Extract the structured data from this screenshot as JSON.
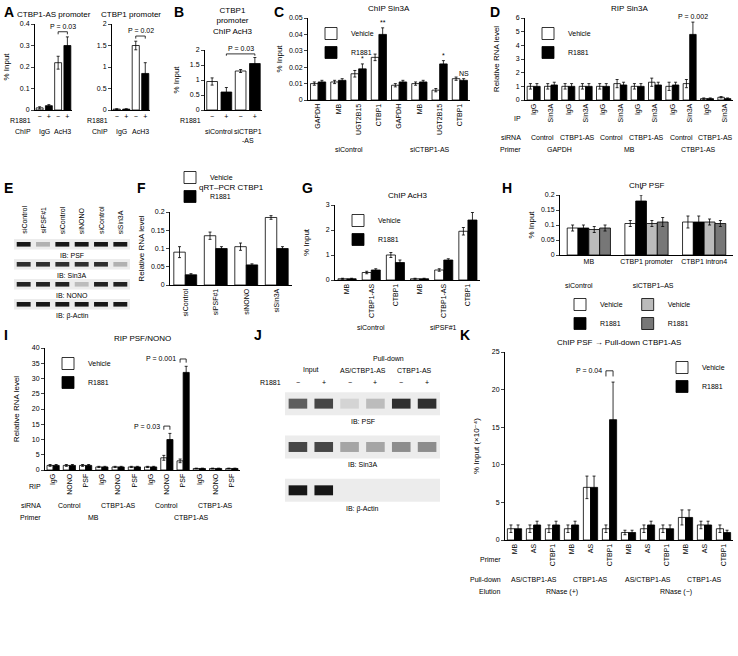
{
  "chart_data": [
    {
      "panel": "A",
      "type": "bar",
      "title": "CTBP1-AS promoter",
      "y_label": "% Input",
      "categories": [
        "−",
        "+",
        "−",
        "+"
      ],
      "category_label": "R1881",
      "rows": [
        {
          "name": "ChIP",
          "labels": [
            "IgG",
            "IgG",
            "AcH3",
            "AcH3"
          ]
        }
      ],
      "values": [
        0.01,
        0.02,
        0.22,
        0.3
      ],
      "errors": [
        0.005,
        0.005,
        0.03,
        0.04
      ],
      "colors": [
        "#ffffff",
        "#000000",
        "#ffffff",
        "#000000"
      ],
      "ylim": [
        0,
        0.4
      ],
      "yticks": [
        0,
        0.1,
        0.2,
        0.3,
        0.4
      ],
      "annotations": [
        {
          "text": "P = 0.03",
          "groups": [
            2,
            3
          ]
        }
      ]
    },
    {
      "type": "bar",
      "title": "CTBP1 promoter",
      "categories": [
        "−",
        "+",
        "−",
        "+"
      ],
      "category_label": "R1881",
      "rows": [
        {
          "name": "ChIP",
          "labels": [
            "IgG",
            "IgG",
            "AcH3",
            "AcH3"
          ]
        }
      ],
      "values": [
        0.02,
        0.02,
        1.5,
        0.85
      ],
      "errors": [
        0.01,
        0.01,
        0.1,
        0.25
      ],
      "colors": [
        "#ffffff",
        "#000000",
        "#ffffff",
        "#000000"
      ],
      "ylim": [
        0,
        2
      ],
      "yticks": [
        0,
        0.5,
        1,
        1.5,
        2
      ],
      "annotations": [
        {
          "text": "P = 0.02",
          "groups": [
            2,
            3
          ]
        }
      ]
    },
    {
      "panel": "B",
      "type": "bar",
      "title": [
        "CTBP1",
        "promoter",
        "ChIP AcH3"
      ],
      "y_label": "% Input",
      "categories": [
        "−",
        "+",
        "−",
        "+"
      ],
      "category_label": "R1881",
      "rows": [
        {
          "labels": [
            "siControl",
            "siControl",
            "siCTBP1-AS",
            "siCTBP1-AS"
          ]
        }
      ],
      "values": [
        0.95,
        0.6,
        1.3,
        1.55
      ],
      "errors": [
        0.12,
        0.15,
        0.05,
        0.2
      ],
      "colors": [
        "#ffffff",
        "#000000",
        "#ffffff",
        "#000000"
      ],
      "ylim": [
        0,
        2
      ],
      "yticks": [
        0,
        0.5,
        1,
        1.5,
        2
      ],
      "annotations": [
        {
          "text": "P = 0.03",
          "groups": [
            1,
            3
          ]
        }
      ]
    },
    {
      "panel": "C",
      "type": "bar",
      "title": "ChIP Sin3A",
      "y_label": "% Input",
      "categories": [
        "GAPDH",
        "MB",
        "UGT2B15",
        "CTBP1",
        "GAPDH",
        "MB",
        "UGT2B15",
        "CTBP1"
      ],
      "rows": [
        {
          "labels": [
            "siControl",
            "siControl",
            "siControl",
            "siControl",
            "siCTBP1-AS",
            "siCTBP1-AS",
            "siCTBP1-AS",
            "siCTBP1-AS"
          ]
        }
      ],
      "series": [
        {
          "name": "Vehicle",
          "color": "#ffffff",
          "values": [
            0.01,
            0.011,
            0.016,
            0.026,
            0.009,
            0.01,
            0.006,
            0.013
          ],
          "errors": [
            0.001,
            0.001,
            0.002,
            0.002,
            0.001,
            0.001,
            0.001,
            0.001
          ]
        },
        {
          "name": "R1881",
          "color": "#000000",
          "values": [
            0.011,
            0.012,
            0.019,
            0.04,
            0.011,
            0.011,
            0.022,
            0.012
          ],
          "errors": [
            0.001,
            0.001,
            0.003,
            0.004,
            0.001,
            0.001,
            0.002,
            0.001
          ]
        }
      ],
      "ylim": [
        0,
        0.05
      ],
      "yticks": [
        0,
        0.01,
        0.02,
        0.03,
        0.04,
        0.05
      ],
      "legend": "upper left",
      "annotations": [
        {
          "text": "*",
          "group": 2,
          "series": 1
        },
        {
          "text": "**",
          "group": 3,
          "series": 1
        },
        {
          "text": "*",
          "group": 6,
          "series": 1
        },
        {
          "text": "NS",
          "group": 7,
          "series": 1
        }
      ]
    },
    {
      "panel": "D",
      "type": "bar",
      "title": "RIP Sin3A",
      "y_label": "Relative RNA level",
      "categories": [
        "IgG",
        "Sin3A",
        "IgG",
        "Sin3A",
        "IgG",
        "Sin3A",
        "IgG",
        "Sin3A",
        "IgG",
        "Sin3A",
        "IgG",
        "Sin3A"
      ],
      "category_label": "IP",
      "rows": [
        {
          "name": "siRNA",
          "labels": [
            "Control",
            "Control",
            "CTBP1-AS",
            "CTBP1-AS",
            "Control",
            "Control",
            "CTBP1-AS",
            "CTBP1-AS",
            "Control",
            "Control",
            "CTBP1-AS",
            "CTBP1-AS"
          ]
        },
        {
          "name": "Primer",
          "labels": [
            "GAPDH",
            "GAPDH",
            "GAPDH",
            "GAPDH",
            "MB",
            "MB",
            "MB",
            "MB",
            "CTBP1-AS",
            "CTBP1-AS",
            "CTBP1-AS",
            "CTBP1-AS"
          ]
        }
      ],
      "series": [
        {
          "name": "Vehicle",
          "color": "#ffffff",
          "values": [
            1,
            1,
            1,
            1,
            1,
            1.2,
            1,
            1.3,
            1,
            1.2,
            0.1,
            0.2
          ],
          "errors": [
            0.2,
            0.2,
            0.2,
            0.2,
            0.2,
            0.3,
            0.2,
            0.3,
            0.3,
            0.3,
            0.05,
            0.05
          ]
        },
        {
          "name": "R1881",
          "color": "#000000",
          "values": [
            1,
            1.1,
            1,
            1,
            1,
            1.1,
            1,
            1.1,
            1.1,
            4.8,
            0.1,
            0.1
          ],
          "errors": [
            0.2,
            0.2,
            0.2,
            0.2,
            0.2,
            0.2,
            0.2,
            0.2,
            0.2,
            0.9,
            0.05,
            0.05
          ]
        }
      ],
      "ylim": [
        0,
        6
      ],
      "yticks": [
        0,
        1,
        2,
        3,
        4,
        5,
        6
      ],
      "legend": "upper left",
      "annotations": [
        {
          "text": "P = 0.002",
          "group": 9,
          "series": 1
        }
      ]
    },
    {
      "panel": "E",
      "type": "blot",
      "label_rows": [
        {
          "labels": [
            "siControl",
            "siPSF#1",
            "siControl",
            "siNONO",
            "siControl",
            "siSin3A"
          ]
        }
      ],
      "rows": [
        {
          "label": "IB: PSF",
          "bands": [
            0.9,
            0.25,
            0.9,
            0.9,
            0.9,
            0.9
          ]
        },
        {
          "label": "IB: Sin3A",
          "bands": [
            0.8,
            0.8,
            0.8,
            0.8,
            0.8,
            0.25
          ]
        },
        {
          "label": "IB: NONO",
          "bands": [
            0.85,
            0.85,
            0.85,
            0.2,
            0.85,
            0.85
          ]
        },
        {
          "label": "IB: β-Actin",
          "bands": [
            0.9,
            0.9,
            0.9,
            0.9,
            0.9,
            0.9
          ]
        }
      ]
    },
    {
      "panel": "F",
      "type": "bar",
      "title": "qRT–PCR CTBP1",
      "y_label": "Relative RNA level",
      "categories": [
        "siControl",
        "siPSF#1",
        "siNONO",
        "siSin3A"
      ],
      "series": [
        {
          "name": "Vehicle",
          "color": "#ffffff",
          "values": [
            0.09,
            0.135,
            0.105,
            0.185
          ],
          "errors": [
            0.015,
            0.01,
            0.01,
            0.005
          ]
        },
        {
          "name": "R1881",
          "color": "#000000",
          "values": [
            0.028,
            0.1,
            0.055,
            0.1
          ],
          "errors": [
            0.003,
            0.005,
            0.003,
            0.005
          ]
        }
      ],
      "ylim": [
        0,
        0.2
      ],
      "yticks": [
        0,
        0.05,
        0.1,
        0.15,
        0.2
      ],
      "legend": "top"
    },
    {
      "panel": "G",
      "type": "bar",
      "title": "ChIP AcH3",
      "y_label": "% Input",
      "categories": [
        "MB",
        "CTBP1-AS",
        "CTBP1",
        "MB",
        "CTBP1-AS",
        "CTBP1"
      ],
      "rows": [
        {
          "labels": [
            "siControl",
            "siControl",
            "siControl",
            "siPSF#1",
            "siPSF#1",
            "siPSF#1"
          ]
        }
      ],
      "series": [
        {
          "name": "Vehicle",
          "color": "#ffffff",
          "values": [
            0.05,
            0.3,
            1.0,
            0.05,
            0.4,
            1.95
          ],
          "errors": [
            0.02,
            0.05,
            0.1,
            0.02,
            0.05,
            0.15
          ]
        },
        {
          "name": "R1881",
          "color": "#000000",
          "values": [
            0.05,
            0.4,
            0.7,
            0.05,
            0.8,
            2.4
          ],
          "errors": [
            0.02,
            0.05,
            0.1,
            0.02,
            0.05,
            0.3
          ]
        }
      ],
      "ylim": [
        0,
        3
      ],
      "yticks": [
        0,
        1,
        2,
        3
      ],
      "legend": "upper left"
    },
    {
      "panel": "H",
      "type": "bar",
      "title": "ChIP PSF",
      "y_label": "% Input",
      "categories": [
        "MB",
        "CTBP1 promoter",
        "CTBP1 intron4"
      ],
      "series": [
        {
          "name": "Vehicle",
          "group": "siControl",
          "color": "#ffffff",
          "values": [
            0.09,
            0.105,
            0.11
          ],
          "errors": [
            0.01,
            0.01,
            0.02
          ]
        },
        {
          "name": "R1881",
          "group": "siControl",
          "color": "#000000",
          "values": [
            0.09,
            0.18,
            0.11
          ],
          "errors": [
            0.01,
            0.02,
            0.02
          ]
        },
        {
          "name": "Vehicle",
          "group": "siCTBP1–AS",
          "color": "#bbbbbb",
          "values": [
            0.085,
            0.105,
            0.11
          ],
          "errors": [
            0.01,
            0.01,
            0.01
          ]
        },
        {
          "name": "R1881",
          "group": "siCTBP1–AS",
          "color": "#777777",
          "values": [
            0.09,
            0.11,
            0.105
          ],
          "errors": [
            0.01,
            0.015,
            0.01
          ]
        }
      ],
      "ylim": [
        0,
        0.2
      ],
      "yticks": [
        0,
        0.05,
        0.1,
        0.15,
        0.2
      ],
      "legend": "bottom",
      "annotations": [
        {
          "text": "*",
          "group": 1,
          "series": 1
        }
      ]
    },
    {
      "panel": "I",
      "type": "bar",
      "title": "RIP PSF/NONO",
      "y_label": "Relative RNA level",
      "categories": [
        "IgG",
        "NONO",
        "PSF",
        "IgG",
        "NONO",
        "PSF",
        "IgG",
        "NONO",
        "PSF",
        "IgG",
        "NONO",
        "PSF"
      ],
      "category_label": "RIP",
      "rows": [
        {
          "name": "siRNA",
          "labels": [
            "Control",
            "Control",
            "Control",
            "CTBP1-AS",
            "CTBP1-AS",
            "CTBP1-AS",
            "Control",
            "Control",
            "Control",
            "CTBP1-AS",
            "CTBP1-AS",
            "CTBP1-AS"
          ]
        },
        {
          "name": "Primer",
          "labels": [
            "MB",
            "MB",
            "MB",
            "MB",
            "MB",
            "MB",
            "CTBP1-AS",
            "CTBP1-AS",
            "CTBP1-AS",
            "CTBP1-AS",
            "CTBP1-AS",
            "CTBP1-AS"
          ]
        }
      ],
      "series": [
        {
          "name": "Vehicle",
          "color": "#ffffff",
          "values": [
            1.5,
            1.5,
            1.5,
            1,
            1,
            1,
            1,
            4,
            3,
            0.5,
            0.5,
            0.5
          ],
          "errors": [
            0.3,
            0.3,
            0.3,
            0.2,
            0.2,
            0.2,
            0.2,
            0.8,
            0.6,
            0.1,
            0.1,
            0.1
          ]
        },
        {
          "name": "R1881",
          "color": "#000000",
          "values": [
            1.5,
            1.5,
            1.5,
            1,
            1,
            1,
            1,
            10,
            32,
            0.5,
            0.5,
            0.5
          ],
          "errors": [
            0.3,
            0.3,
            0.3,
            0.2,
            0.2,
            0.2,
            0.2,
            2,
            2,
            0.1,
            0.1,
            0.1
          ]
        }
      ],
      "ylim": [
        0,
        40
      ],
      "yticks": [
        0,
        5,
        10,
        15,
        20,
        25,
        30,
        35,
        40
      ],
      "legend": "upper left",
      "annotations": [
        {
          "text": "P = 0.03",
          "groups": [
            7,
            7
          ]
        },
        {
          "text": "P = 0.001",
          "groups": [
            8,
            8
          ]
        }
      ]
    },
    {
      "panel": "J",
      "type": "blot",
      "label_rows": [
        {
          "labels": [
            null,
            null,
            "Pull-down",
            "Pull-down",
            "Pull-down",
            "Pull-down"
          ]
        },
        {
          "labels": [
            "Input",
            "Input",
            "AS/CTBP1-AS",
            "AS/CTBP1-AS",
            "CTBP1-AS",
            "CTBP1-AS"
          ]
        },
        {
          "name": "R1881",
          "labels": [
            "−",
            "+",
            "−",
            "+",
            "−",
            "+"
          ]
        }
      ],
      "rows": [
        {
          "label": "IB: PSF",
          "bands": [
            0.6,
            0.7,
            0.1,
            0.2,
            0.8,
            0.8
          ]
        },
        {
          "label": "IB: Sin3A",
          "bands": [
            0.7,
            0.7,
            0.3,
            0.3,
            0.4,
            0.4
          ]
        },
        {
          "label": "IB: β-Actin",
          "bands": [
            0.9,
            0.9,
            0,
            0,
            0,
            0
          ]
        }
      ]
    },
    {
      "panel": "K",
      "type": "bar",
      "title": "ChIP PSF → Pull-down CTBP1-AS",
      "y_label": "% Input (×10⁻⁴)",
      "categories": [
        "MB",
        "AS",
        "CTBP1",
        "MB",
        "AS",
        "CTBP1",
        "MB",
        "AS",
        "CTBP1",
        "MB",
        "AS",
        "CTBP1"
      ],
      "category_label": "Primer",
      "rows": [
        {
          "name": "Pull-down",
          "labels": [
            "AS/CTBP1-AS",
            "AS/CTBP1-AS",
            "AS/CTBP1-AS",
            "CTBP1-AS",
            "CTBP1-AS",
            "CTBP1-AS",
            "AS/CTBP1-AS",
            "AS/CTBP1-AS",
            "AS/CTBP1-AS",
            "CTBP1-AS",
            "CTBP1-AS",
            "CTBP1-AS"
          ]
        },
        {
          "name": "Elution",
          "labels": [
            "RNase (+)",
            "RNase (+)",
            "RNase (+)",
            "RNase (+)",
            "RNase (+)",
            "RNase (+)",
            "RNase (−)",
            "RNase (−)",
            "RNase (−)",
            "RNase (−)",
            "RNase (−)",
            "RNase (−)"
          ]
        }
      ],
      "series": [
        {
          "name": "Vehicle",
          "color": "#ffffff",
          "values": [
            1.5,
            1.5,
            1.5,
            1.5,
            7,
            1.5,
            1,
            1.5,
            1.5,
            3,
            2,
            1.5
          ],
          "errors": [
            0.5,
            0.5,
            0.5,
            0.5,
            1.5,
            0.5,
            0.3,
            0.5,
            0.5,
            1,
            0.5,
            0.5
          ]
        },
        {
          "name": "R1881",
          "color": "#000000",
          "values": [
            1.5,
            2,
            2,
            2,
            7,
            16,
            1,
            2,
            1.5,
            3,
            2,
            1
          ],
          "errors": [
            0.5,
            0.5,
            0.5,
            0.5,
            1.5,
            5,
            0.3,
            0.5,
            0.5,
            1,
            0.5,
            0.3
          ]
        }
      ],
      "ylim": [
        0,
        25
      ],
      "yticks": [
        0,
        5,
        10,
        15,
        20,
        25
      ],
      "legend": "upper right",
      "annotations": [
        {
          "text": "P = 0.04",
          "groups": [
            5,
            5
          ]
        }
      ]
    }
  ]
}
